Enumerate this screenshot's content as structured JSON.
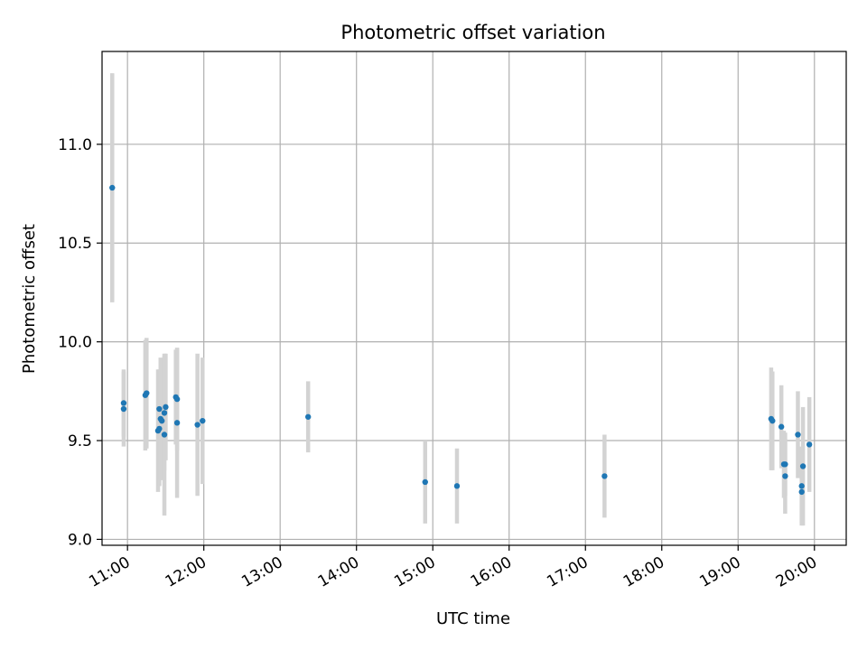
{
  "chart_data": {
    "type": "scatter",
    "title": "Photometric offset variation",
    "xlabel": "UTC time",
    "ylabel": "Photometric offset",
    "x_axis": {
      "type": "time",
      "range": [
        "10:40",
        "20:25"
      ]
    },
    "y_axis": {
      "range": [
        8.97,
        11.47
      ]
    },
    "x_ticks": [
      "11:00",
      "12:00",
      "13:00",
      "14:00",
      "15:00",
      "16:00",
      "17:00",
      "18:00",
      "19:00",
      "20:00"
    ],
    "y_ticks": [
      "9.0",
      "9.5",
      "10.0",
      "10.5",
      "11.0"
    ],
    "grid": true,
    "colors": {
      "marker": "#1f77b4",
      "errorbar": "#d3d3d3"
    },
    "points": [
      {
        "x": "10:48",
        "y": 10.78,
        "err": 0.58
      },
      {
        "x": "10:57",
        "y": 9.69,
        "err": 0.17
      },
      {
        "x": "10:57",
        "y": 9.66,
        "err": 0.19
      },
      {
        "x": "11:14",
        "y": 9.73,
        "err": 0.28
      },
      {
        "x": "11:15",
        "y": 9.74,
        "err": 0.28
      },
      {
        "x": "11:24",
        "y": 9.55,
        "err": 0.31
      },
      {
        "x": "11:25",
        "y": 9.66,
        "err": 0.2
      },
      {
        "x": "11:25",
        "y": 9.56,
        "err": 0.29
      },
      {
        "x": "11:26",
        "y": 9.61,
        "err": 0.31
      },
      {
        "x": "11:27",
        "y": 9.6,
        "err": 0.3
      },
      {
        "x": "11:29",
        "y": 9.53,
        "err": 0.41
      },
      {
        "x": "11:29",
        "y": 9.64,
        "err": 0.29
      },
      {
        "x": "11:30",
        "y": 9.67,
        "err": 0.27
      },
      {
        "x": "11:38",
        "y": 9.72,
        "err": 0.24
      },
      {
        "x": "11:39",
        "y": 9.71,
        "err": 0.26
      },
      {
        "x": "11:39",
        "y": 9.59,
        "err": 0.38
      },
      {
        "x": "11:55",
        "y": 9.58,
        "err": 0.36
      },
      {
        "x": "11:59",
        "y": 9.6,
        "err": 0.32
      },
      {
        "x": "13:22",
        "y": 9.62,
        "err": 0.18
      },
      {
        "x": "14:54",
        "y": 9.29,
        "err": 0.21
      },
      {
        "x": "15:19",
        "y": 9.27,
        "err": 0.19
      },
      {
        "x": "17:15",
        "y": 9.32,
        "err": 0.21
      },
      {
        "x": "19:26",
        "y": 9.61,
        "err": 0.26
      },
      {
        "x": "19:27",
        "y": 9.6,
        "err": 0.25
      },
      {
        "x": "19:34",
        "y": 9.57,
        "err": 0.21
      },
      {
        "x": "19:36",
        "y": 9.38,
        "err": 0.17
      },
      {
        "x": "19:37",
        "y": 9.32,
        "err": 0.19
      },
      {
        "x": "19:37",
        "y": 9.38,
        "err": 0.16
      },
      {
        "x": "19:47",
        "y": 9.53,
        "err": 0.22
      },
      {
        "x": "19:50",
        "y": 9.24,
        "err": 0.16
      },
      {
        "x": "19:50",
        "y": 9.27,
        "err": 0.2
      },
      {
        "x": "19:51",
        "y": 9.37,
        "err": 0.3
      },
      {
        "x": "19:56",
        "y": 9.48,
        "err": 0.24
      }
    ]
  }
}
